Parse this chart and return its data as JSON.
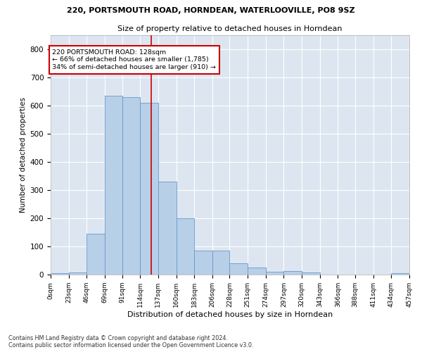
{
  "title1": "220, PORTSMOUTH ROAD, HORNDEAN, WATERLOOVILLE, PO8 9SZ",
  "title2": "Size of property relative to detached houses in Horndean",
  "xlabel": "Distribution of detached houses by size in Horndean",
  "ylabel": "Number of detached properties",
  "bar_color": "#b8cfe8",
  "bar_edge_color": "#6699cc",
  "bg_color": "#dde6f0",
  "grid_color": "#ffffff",
  "bin_edges": [
    0,
    23,
    46,
    69,
    91,
    114,
    137,
    160,
    183,
    206,
    228,
    251,
    274,
    297,
    320,
    343,
    366,
    388,
    411,
    434,
    457
  ],
  "bin_labels": [
    "0sqm",
    "23sqm",
    "46sqm",
    "69sqm",
    "91sqm",
    "114sqm",
    "137sqm",
    "160sqm",
    "183sqm",
    "206sqm",
    "228sqm",
    "251sqm",
    "274sqm",
    "297sqm",
    "320sqm",
    "343sqm",
    "366sqm",
    "388sqm",
    "411sqm",
    "434sqm",
    "457sqm"
  ],
  "bar_heights": [
    5,
    8,
    145,
    635,
    630,
    610,
    330,
    200,
    85,
    85,
    40,
    25,
    10,
    12,
    8,
    0,
    0,
    0,
    0,
    5
  ],
  "vline_x": 128,
  "vline_color": "#cc0000",
  "annotation_text": "220 PORTSMOUTH ROAD: 128sqm\n← 66% of detached houses are smaller (1,785)\n34% of semi-detached houses are larger (910) →",
  "annotation_box_color": "#ffffff",
  "annotation_box_edge": "#cc0000",
  "ylim": [
    0,
    850
  ],
  "yticks": [
    0,
    100,
    200,
    300,
    400,
    500,
    600,
    700,
    800
  ],
  "footer1": "Contains HM Land Registry data © Crown copyright and database right 2024.",
  "footer2": "Contains public sector information licensed under the Open Government Licence v3.0."
}
